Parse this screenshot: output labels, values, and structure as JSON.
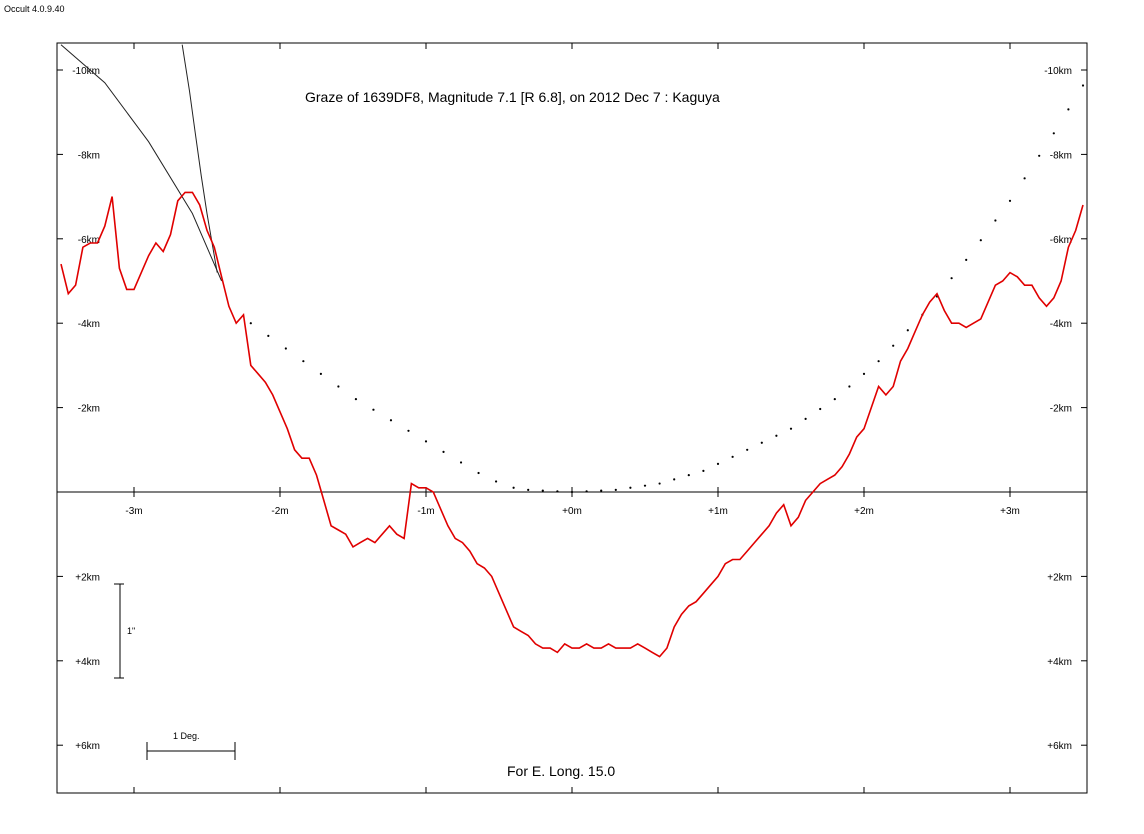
{
  "version_label": "Occult 4.0.9.40",
  "chart_data": {
    "type": "line",
    "title": "Graze of  1639DF8,  Magnitude 7.1 [R 6.8],  on 2012 Dec  7  :  Kaguya",
    "footer": "For E. Long. 15.0",
    "x_unit": "m",
    "y_unit": "km",
    "xlim": [
      -3.5,
      3.5
    ],
    "ylim": [
      -10.6,
      7.2
    ],
    "x_ticks": [
      {
        "value": -3,
        "label": "-3m"
      },
      {
        "value": -2,
        "label": "-2m"
      },
      {
        "value": -1,
        "label": "-1m"
      },
      {
        "value": 0,
        "label": "+0m"
      },
      {
        "value": 1,
        "label": "+1m"
      },
      {
        "value": 2,
        "label": "+2m"
      },
      {
        "value": 3,
        "label": "+3m"
      }
    ],
    "y_ticks": [
      {
        "value": -10,
        "label": "-10km"
      },
      {
        "value": -8,
        "label": "-8km"
      },
      {
        "value": -6,
        "label": "-6km"
      },
      {
        "value": -4,
        "label": "-4km"
      },
      {
        "value": -2,
        "label": "-2km"
      },
      {
        "value": 2,
        "label": "+2km"
      },
      {
        "value": 4,
        "label": "+4km"
      },
      {
        "value": 6,
        "label": "+6km"
      }
    ],
    "scale_bars": {
      "arcsec_label": "1\"",
      "degree_label": "1 Deg."
    },
    "limb_profile": {
      "color": "#e00000",
      "x": [
        -3.5,
        -3.45,
        -3.4,
        -3.35,
        -3.3,
        -3.25,
        -3.2,
        -3.15,
        -3.1,
        -3.05,
        -3.0,
        -2.95,
        -2.9,
        -2.85,
        -2.8,
        -2.75,
        -2.7,
        -2.65,
        -2.6,
        -2.55,
        -2.5,
        -2.45,
        -2.4,
        -2.35,
        -2.3,
        -2.25,
        -2.2,
        -2.15,
        -2.1,
        -2.05,
        -2.0,
        -1.95,
        -1.9,
        -1.85,
        -1.8,
        -1.75,
        -1.7,
        -1.65,
        -1.6,
        -1.55,
        -1.5,
        -1.45,
        -1.4,
        -1.35,
        -1.3,
        -1.25,
        -1.2,
        -1.15,
        -1.1,
        -1.05,
        -1.0,
        -0.95,
        -0.9,
        -0.85,
        -0.8,
        -0.75,
        -0.7,
        -0.65,
        -0.6,
        -0.55,
        -0.5,
        -0.45,
        -0.4,
        -0.35,
        -0.3,
        -0.25,
        -0.2,
        -0.15,
        -0.1,
        -0.05,
        0.0,
        0.05,
        0.1,
        0.15,
        0.2,
        0.25,
        0.3,
        0.35,
        0.4,
        0.45,
        0.5,
        0.55,
        0.6,
        0.65,
        0.7,
        0.75,
        0.8,
        0.85,
        0.9,
        0.95,
        1.0,
        1.05,
        1.1,
        1.15,
        1.2,
        1.25,
        1.3,
        1.35,
        1.4,
        1.45,
        1.5,
        1.55,
        1.6,
        1.65,
        1.7,
        1.75,
        1.8,
        1.85,
        1.9,
        1.95,
        2.0,
        2.05,
        2.1,
        2.15,
        2.2,
        2.25,
        2.3,
        2.35,
        2.4,
        2.45,
        2.5,
        2.55,
        2.6,
        2.65,
        2.7,
        2.75,
        2.8,
        2.85,
        2.9,
        2.95,
        3.0,
        3.05,
        3.1,
        3.15,
        3.2,
        3.25,
        3.3,
        3.35,
        3.4,
        3.45,
        3.5
      ],
      "y": [
        -5.4,
        -4.7,
        -4.9,
        -5.8,
        -5.9,
        -5.9,
        -6.3,
        -7.0,
        -5.3,
        -4.8,
        -4.8,
        -5.2,
        -5.6,
        -5.9,
        -5.7,
        -6.1,
        -6.9,
        -7.1,
        -7.1,
        -6.8,
        -6.2,
        -5.8,
        -5.1,
        -4.4,
        -4.0,
        -4.2,
        -3.0,
        -2.8,
        -2.6,
        -2.3,
        -1.9,
        -1.5,
        -1.0,
        -0.8,
        -0.8,
        -0.4,
        0.2,
        0.8,
        0.9,
        1.0,
        1.3,
        1.2,
        1.1,
        1.2,
        1.0,
        0.8,
        1.0,
        1.1,
        -0.2,
        -0.1,
        -0.1,
        0.0,
        0.4,
        0.8,
        1.1,
        1.2,
        1.4,
        1.7,
        1.8,
        2.0,
        2.4,
        2.8,
        3.2,
        3.3,
        3.4,
        3.6,
        3.7,
        3.7,
        3.8,
        3.6,
        3.7,
        3.7,
        3.6,
        3.7,
        3.7,
        3.6,
        3.7,
        3.7,
        3.7,
        3.6,
        3.7,
        3.8,
        3.9,
        3.7,
        3.2,
        2.9,
        2.7,
        2.6,
        2.4,
        2.2,
        2.0,
        1.7,
        1.6,
        1.6,
        1.4,
        1.2,
        1.0,
        0.8,
        0.5,
        0.3,
        0.8,
        0.6,
        0.2,
        0.0,
        -0.2,
        -0.3,
        -0.4,
        -0.6,
        -0.9,
        -1.3,
        -1.5,
        -2.0,
        -2.5,
        -2.3,
        -2.5,
        -3.1,
        -3.4,
        -3.8,
        -4.2,
        -4.5,
        -4.7,
        -4.3,
        -4.0,
        -4.0,
        -3.9,
        -4.0,
        -4.1,
        -4.5,
        -4.9,
        -5.0,
        -5.2,
        -5.1,
        -4.9,
        -4.9,
        -4.6,
        -4.4,
        -4.6,
        -5.0,
        -5.8,
        -6.2,
        -6.8
      ]
    },
    "northern_limit_curve": {
      "color": "#000000",
      "x": [
        -0.3,
        0.0,
        0.3,
        0.6,
        0.9,
        1.2,
        1.5,
        1.8,
        2.1,
        2.4,
        2.7,
        3.0,
        3.3,
        3.6
      ],
      "y": [
        -0.05,
        0.0,
        -0.05,
        -0.2,
        -0.5,
        -1.0,
        -1.5,
        -2.2,
        -3.1,
        -4.2,
        -5.5,
        -6.9,
        -8.5,
        -10.2
      ]
    },
    "dots_left": {
      "x": [
        -2.2,
        -2.08,
        -1.96,
        -1.84,
        -1.72,
        -1.6,
        -1.48,
        -1.36,
        -1.24,
        -1.12,
        -1.0,
        -0.88,
        -0.76,
        -0.64,
        -0.52,
        -0.4
      ],
      "y": [
        -4.0,
        -3.7,
        -3.4,
        -3.1,
        -2.8,
        -2.5,
        -2.2,
        -1.95,
        -1.7,
        -1.45,
        -1.2,
        -0.95,
        -0.7,
        -0.45,
        -0.25,
        -0.1
      ]
    },
    "lunar_features": [
      {
        "x": [
          -3.5,
          -3.2,
          -2.9,
          -2.6,
          -2.4
        ],
        "y": [
          -10.6,
          -9.7,
          -8.3,
          -6.6,
          -5.0
        ]
      },
      {
        "x": [
          -2.67,
          -2.62,
          -2.58,
          -2.54,
          -2.5,
          -2.46,
          -2.43
        ],
        "y": [
          -10.6,
          -9.5,
          -8.5,
          -7.5,
          -6.6,
          -5.8,
          -5.2
        ]
      }
    ]
  }
}
